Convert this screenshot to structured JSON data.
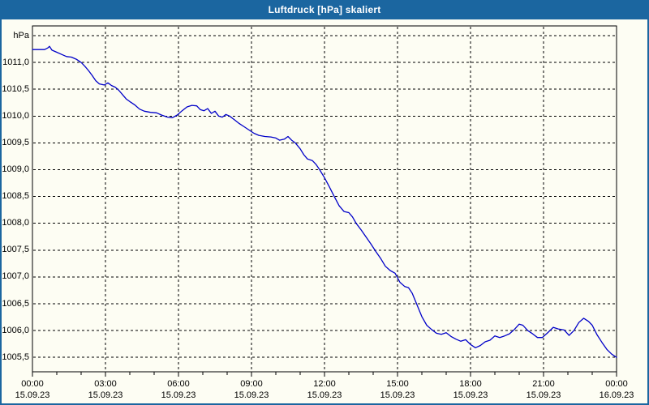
{
  "window": {
    "title": "Luftdruck [hPa] skaliert"
  },
  "colors": {
    "titlebar": "#1b66a0",
    "window_border": "#1b66a0",
    "background": "#fdfdf3",
    "line": "#0000c8",
    "grid": "#000000",
    "text": "#000000",
    "title_text": "#ffffff"
  },
  "chart_data": {
    "type": "line",
    "title": "Luftdruck [hPa] skaliert",
    "unit_label": "hPa",
    "grid": "dashed",
    "legend": "none",
    "xlim_hours": [
      0,
      24
    ],
    "ylim": [
      1005.23,
      1011.68
    ],
    "y_axis": {
      "ticks": [
        {
          "label": "hPa",
          "value": 1011.5
        },
        {
          "label": "1011,0",
          "value": 1011.0
        },
        {
          "label": "1010,5",
          "value": 1010.5
        },
        {
          "label": "1010,0",
          "value": 1010.0
        },
        {
          "label": "1009,5",
          "value": 1009.5
        },
        {
          "label": "1009,0",
          "value": 1009.0
        },
        {
          "label": "1008,5",
          "value": 1008.5
        },
        {
          "label": "1008,0",
          "value": 1008.0
        },
        {
          "label": "1007,5",
          "value": 1007.5
        },
        {
          "label": "1007,0",
          "value": 1007.0
        },
        {
          "label": "1006,5",
          "value": 1006.5
        },
        {
          "label": "1006,0",
          "value": 1006.0
        },
        {
          "label": "1005,5",
          "value": 1005.5
        }
      ]
    },
    "x_axis": {
      "minor_tick_every_hours": 1,
      "major_tick_every_hours": 3,
      "ticks": [
        {
          "time": "00:00",
          "date": "15.09.23",
          "hour": 0
        },
        {
          "time": "03:00",
          "date": "15.09.23",
          "hour": 3
        },
        {
          "time": "06:00",
          "date": "15.09.23",
          "hour": 6
        },
        {
          "time": "09:00",
          "date": "15.09.23",
          "hour": 9
        },
        {
          "time": "12:00",
          "date": "15.09.23",
          "hour": 12
        },
        {
          "time": "15:00",
          "date": "15.09.23",
          "hour": 15
        },
        {
          "time": "18:00",
          "date": "15.09.23",
          "hour": 18
        },
        {
          "time": "21:00",
          "date": "15.09.23",
          "hour": 21
        },
        {
          "time": "00:00",
          "date": "16.09.23",
          "hour": 24
        }
      ]
    },
    "series": [
      {
        "name": "Luftdruck",
        "points": [
          [
            0.0,
            1011.24
          ],
          [
            0.3,
            1011.24
          ],
          [
            0.5,
            1011.24
          ],
          [
            0.63,
            1011.27
          ],
          [
            0.7,
            1011.3
          ],
          [
            0.8,
            1011.23
          ],
          [
            1.0,
            1011.19
          ],
          [
            1.2,
            1011.15
          ],
          [
            1.4,
            1011.11
          ],
          [
            1.6,
            1011.1
          ],
          [
            1.8,
            1011.06
          ],
          [
            2.0,
            1011.0
          ],
          [
            2.15,
            1010.93
          ],
          [
            2.3,
            1010.85
          ],
          [
            2.45,
            1010.76
          ],
          [
            2.6,
            1010.66
          ],
          [
            2.75,
            1010.6
          ],
          [
            2.95,
            1010.58
          ],
          [
            3.1,
            1010.62
          ],
          [
            3.25,
            1010.57
          ],
          [
            3.4,
            1010.54
          ],
          [
            3.55,
            1010.48
          ],
          [
            3.7,
            1010.4
          ],
          [
            3.85,
            1010.32
          ],
          [
            4.0,
            1010.27
          ],
          [
            4.2,
            1010.21
          ],
          [
            4.4,
            1010.13
          ],
          [
            4.6,
            1010.09
          ],
          [
            4.85,
            1010.07
          ],
          [
            5.1,
            1010.06
          ],
          [
            5.3,
            1010.02
          ],
          [
            5.55,
            1009.98
          ],
          [
            5.75,
            1009.97
          ],
          [
            5.95,
            1010.02
          ],
          [
            6.15,
            1010.1
          ],
          [
            6.35,
            1010.17
          ],
          [
            6.55,
            1010.2
          ],
          [
            6.75,
            1010.19
          ],
          [
            6.9,
            1010.12
          ],
          [
            7.05,
            1010.1
          ],
          [
            7.2,
            1010.14
          ],
          [
            7.35,
            1010.05
          ],
          [
            7.5,
            1010.09
          ],
          [
            7.65,
            1010.0
          ],
          [
            7.8,
            1009.98
          ],
          [
            7.95,
            1010.03
          ],
          [
            8.1,
            1010.0
          ],
          [
            8.3,
            1009.93
          ],
          [
            8.5,
            1009.86
          ],
          [
            8.7,
            1009.8
          ],
          [
            8.9,
            1009.74
          ],
          [
            9.1,
            1009.68
          ],
          [
            9.3,
            1009.64
          ],
          [
            9.55,
            1009.62
          ],
          [
            9.8,
            1009.61
          ],
          [
            10.0,
            1009.59
          ],
          [
            10.15,
            1009.55
          ],
          [
            10.35,
            1009.57
          ],
          [
            10.5,
            1009.62
          ],
          [
            10.65,
            1009.55
          ],
          [
            10.8,
            1009.5
          ],
          [
            11.0,
            1009.39
          ],
          [
            11.15,
            1009.28
          ],
          [
            11.3,
            1009.2
          ],
          [
            11.5,
            1009.17
          ],
          [
            11.65,
            1009.1
          ],
          [
            11.8,
            1009.0
          ],
          [
            12.0,
            1008.85
          ],
          [
            12.2,
            1008.68
          ],
          [
            12.4,
            1008.5
          ],
          [
            12.6,
            1008.33
          ],
          [
            12.8,
            1008.22
          ],
          [
            13.0,
            1008.2
          ],
          [
            13.15,
            1008.12
          ],
          [
            13.3,
            1008.0
          ],
          [
            13.5,
            1007.88
          ],
          [
            13.7,
            1007.75
          ],
          [
            13.9,
            1007.62
          ],
          [
            14.1,
            1007.48
          ],
          [
            14.3,
            1007.35
          ],
          [
            14.5,
            1007.2
          ],
          [
            14.7,
            1007.12
          ],
          [
            14.9,
            1007.07
          ],
          [
            15.1,
            1006.9
          ],
          [
            15.3,
            1006.82
          ],
          [
            15.45,
            1006.8
          ],
          [
            15.6,
            1006.7
          ],
          [
            15.8,
            1006.48
          ],
          [
            16.0,
            1006.26
          ],
          [
            16.2,
            1006.1
          ],
          [
            16.4,
            1006.02
          ],
          [
            16.6,
            1005.95
          ],
          [
            16.8,
            1005.93
          ],
          [
            17.0,
            1005.96
          ],
          [
            17.2,
            1005.89
          ],
          [
            17.4,
            1005.84
          ],
          [
            17.6,
            1005.8
          ],
          [
            17.8,
            1005.83
          ],
          [
            18.0,
            1005.74
          ],
          [
            18.2,
            1005.68
          ],
          [
            18.4,
            1005.72
          ],
          [
            18.6,
            1005.79
          ],
          [
            18.8,
            1005.82
          ],
          [
            19.0,
            1005.9
          ],
          [
            19.2,
            1005.87
          ],
          [
            19.4,
            1005.9
          ],
          [
            19.6,
            1005.94
          ],
          [
            19.8,
            1006.02
          ],
          [
            20.0,
            1006.12
          ],
          [
            20.15,
            1006.1
          ],
          [
            20.35,
            1006.0
          ],
          [
            20.55,
            1005.94
          ],
          [
            20.75,
            1005.87
          ],
          [
            20.95,
            1005.87
          ],
          [
            21.15,
            1005.95
          ],
          [
            21.4,
            1006.06
          ],
          [
            21.6,
            1006.03
          ],
          [
            21.85,
            1006.01
          ],
          [
            22.05,
            1005.91
          ],
          [
            22.25,
            1006.0
          ],
          [
            22.45,
            1006.15
          ],
          [
            22.65,
            1006.23
          ],
          [
            22.85,
            1006.17
          ],
          [
            23.0,
            1006.1
          ],
          [
            23.2,
            1005.92
          ],
          [
            23.4,
            1005.78
          ],
          [
            23.6,
            1005.65
          ],
          [
            23.8,
            1005.56
          ],
          [
            24.0,
            1005.5
          ]
        ]
      }
    ]
  }
}
